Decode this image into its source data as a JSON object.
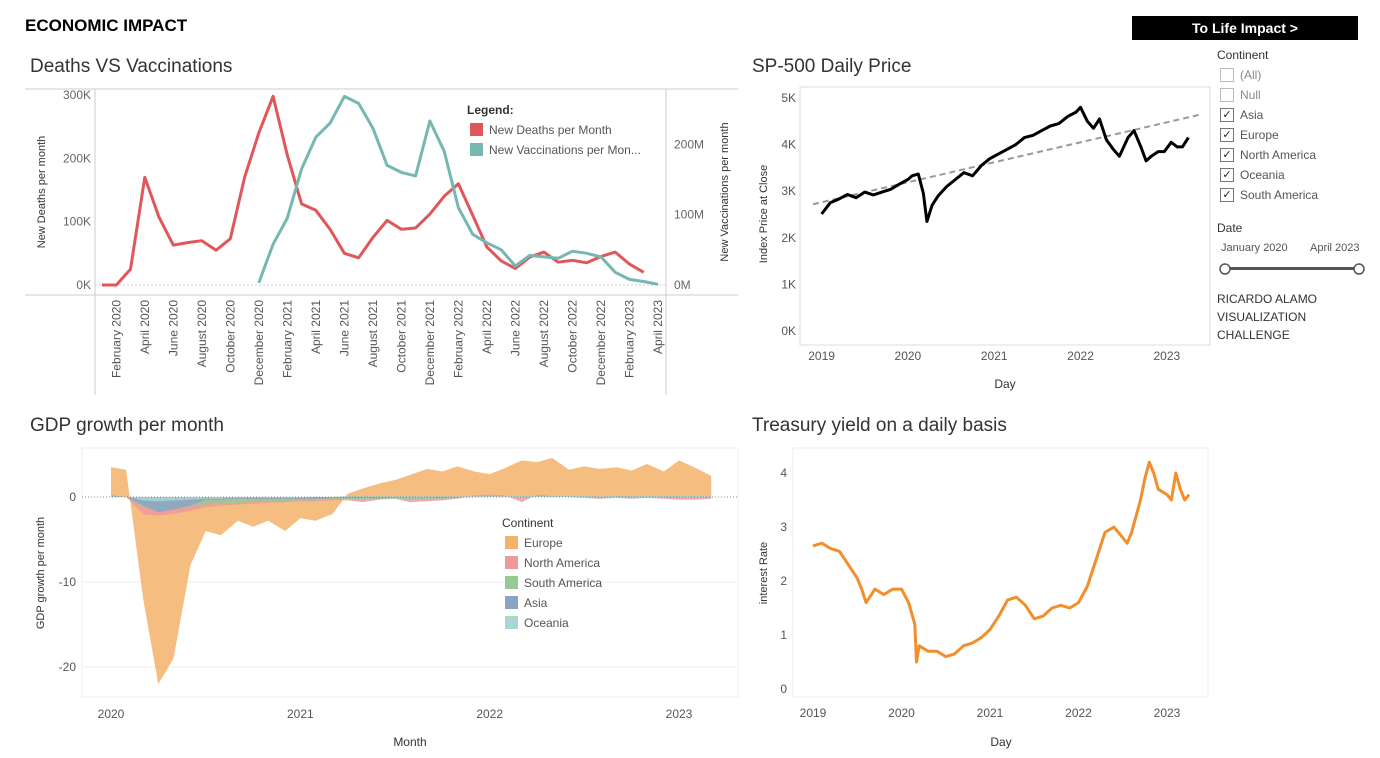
{
  "header": {
    "title": "ECONOMIC IMPACT",
    "nav_button": "To Life Impact >"
  },
  "filters": {
    "continent_title": "Continent",
    "continent_items": [
      {
        "label": "(All)",
        "checked": false
      },
      {
        "label": "Null",
        "checked": false
      },
      {
        "label": "Asia",
        "checked": true
      },
      {
        "label": "Europe",
        "checked": true
      },
      {
        "label": "North America",
        "checked": true
      },
      {
        "label": "Oceania",
        "checked": true
      },
      {
        "label": "South America",
        "checked": true
      }
    ],
    "date_title": "Date",
    "date_start": "January 2020",
    "date_end": "April 2023",
    "credit_line1": "RICARDO ALAMO",
    "credit_line2": "VISUALIZATION",
    "credit_line3": "CHALLENGE"
  },
  "chart_data": [
    {
      "type": "line",
      "title": "Deaths VS Vaccinations",
      "ylabel": "New Deaths per month",
      "y2label": "New Vaccinations per month",
      "legend_title": "Legend:",
      "legend_position": "top-right",
      "categories": [
        "January 2020",
        "February 2020",
        "March 2020",
        "April 2020",
        "May 2020",
        "June 2020",
        "July 2020",
        "August 2020",
        "September 2020",
        "October 2020",
        "November 2020",
        "December 2020",
        "January 2021",
        "February 2021",
        "March 2021",
        "April 2021",
        "May 2021",
        "June 2021",
        "July 2021",
        "August 2021",
        "September 2021",
        "October 2021",
        "November 2021",
        "December 2021",
        "January 2022",
        "February 2022",
        "March 2022",
        "April 2022",
        "May 2022",
        "June 2022",
        "July 2022",
        "August 2022",
        "September 2022",
        "October 2022",
        "November 2022",
        "December 2022",
        "January 2023",
        "February 2023",
        "March 2023",
        "April 2023"
      ],
      "tick_labels": [
        "February 2020",
        "April 2020",
        "June 2020",
        "August 2020",
        "October 2020",
        "December 2020",
        "February 2021",
        "April 2021",
        "June 2021",
        "August 2021",
        "October 2021",
        "December 2021",
        "February 2022",
        "April 2022",
        "June 2022",
        "August 2022",
        "October 2022",
        "December 2022",
        "February 2023",
        "April 2023"
      ],
      "y_ticks": [
        "0K",
        "100K",
        "200K",
        "300K"
      ],
      "y2_ticks": [
        "0M",
        "100M",
        "200M"
      ],
      "ylim": [
        0,
        300000
      ],
      "y2lim": [
        0,
        270000000
      ],
      "series": [
        {
          "name": "New Deaths per Month",
          "axis": "left",
          "color": "#e15759",
          "values": [
            0,
            0,
            25000,
            170000,
            107000,
            63000,
            67000,
            70000,
            55000,
            73000,
            170000,
            240000,
            298000,
            205000,
            128000,
            118000,
            88000,
            50000,
            43000,
            75000,
            102000,
            88000,
            90000,
            112000,
            140000,
            160000,
            110000,
            60000,
            38000,
            26000,
            44000,
            52000,
            36000,
            39000,
            35000,
            45000,
            52000,
            33000,
            20000,
            null
          ]
        },
        {
          "name": "New Vaccinations per Month",
          "axis": "right",
          "color": "#76b7b2",
          "values": [
            null,
            null,
            null,
            null,
            null,
            null,
            null,
            null,
            null,
            null,
            null,
            3000000,
            58000000,
            95000000,
            165000000,
            210000000,
            230000000,
            268000000,
            258000000,
            223000000,
            170000000,
            160000000,
            155000000,
            233000000,
            190000000,
            110000000,
            72000000,
            60000000,
            50000000,
            27000000,
            42000000,
            40000000,
            38000000,
            48000000,
            45000000,
            40000000,
            18000000,
            8000000,
            5000000,
            1000000
          ]
        }
      ]
    },
    {
      "type": "line",
      "title": "SP-500 Daily Price",
      "xlabel": "Day",
      "ylabel": "Index Price at Close",
      "x_ticks": [
        "2019",
        "2020",
        "2021",
        "2022",
        "2023"
      ],
      "y_ticks": [
        "0K",
        "1K",
        "2K",
        "3K",
        "4K",
        "5K"
      ],
      "ylim": [
        0,
        5000
      ],
      "trend_line": {
        "start": [
          2018.9,
          2720
        ],
        "end": [
          2023.4,
          4650
        ]
      },
      "series": [
        {
          "color": "#000000",
          "x": [
            2019.0,
            2019.1,
            2019.2,
            2019.3,
            2019.4,
            2019.5,
            2019.6,
            2019.7,
            2019.8,
            2019.9,
            2020.0,
            2020.05,
            2020.12,
            2020.18,
            2020.22,
            2020.28,
            2020.35,
            2020.45,
            2020.55,
            2020.65,
            2020.75,
            2020.85,
            2020.95,
            2021.05,
            2021.15,
            2021.25,
            2021.35,
            2021.45,
            2021.55,
            2021.65,
            2021.75,
            2021.85,
            2021.95,
            2022.0,
            2022.08,
            2022.15,
            2022.22,
            2022.3,
            2022.38,
            2022.45,
            2022.55,
            2022.62,
            2022.7,
            2022.76,
            2022.82,
            2022.9,
            2022.97,
            2023.05,
            2023.12,
            2023.18,
            2023.25
          ],
          "y": [
            2510,
            2750,
            2830,
            2930,
            2860,
            2980,
            2920,
            2980,
            3040,
            3150,
            3250,
            3330,
            3370,
            2950,
            2350,
            2700,
            2900,
            3100,
            3250,
            3400,
            3330,
            3550,
            3700,
            3800,
            3900,
            4000,
            4150,
            4200,
            4300,
            4400,
            4450,
            4600,
            4700,
            4800,
            4500,
            4350,
            4550,
            4100,
            3900,
            3750,
            4150,
            4300,
            3950,
            3650,
            3750,
            3850,
            3850,
            4050,
            3950,
            3950,
            4150
          ]
        }
      ]
    },
    {
      "type": "area",
      "title": "GDP growth per month",
      "xlabel": "Month",
      "ylabel": "GDP growth per month",
      "legend_title": "Continent",
      "legend_position": "center-right",
      "x_ticks": [
        "2020",
        "2021",
        "2022",
        "2023"
      ],
      "y_ticks": [
        "0",
        "-10",
        "-20"
      ],
      "ylim": [
        -23,
        6
      ],
      "x": [
        2020.0,
        2020.08,
        2020.17,
        2020.25,
        2020.33,
        2020.42,
        2020.5,
        2020.58,
        2020.67,
        2020.75,
        2020.83,
        2020.92,
        2021.0,
        2021.08,
        2021.17,
        2021.25,
        2021.33,
        2021.42,
        2021.5,
        2021.58,
        2021.67,
        2021.75,
        2021.83,
        2021.92,
        2022.0,
        2022.08,
        2022.17,
        2022.25,
        2022.33,
        2022.42,
        2022.5,
        2022.58,
        2022.67,
        2022.75,
        2022.83,
        2022.92,
        2023.0,
        2023.08,
        2023.17
      ],
      "series": [
        {
          "name": "Europe",
          "color": "#f5b26b",
          "values": [
            3.5,
            3.2,
            -12,
            -22,
            -19,
            -8,
            -4,
            -4.5,
            -2.8,
            -3.5,
            -2.8,
            -4,
            -2.5,
            -2.8,
            -2,
            0.4,
            1,
            1.6,
            2,
            2.6,
            3.3,
            3,
            3.6,
            3,
            2.7,
            3.4,
            4.3,
            4.1,
            4.6,
            3.2,
            3.6,
            3.3,
            3.5,
            3.1,
            3.9,
            3.0,
            4.3,
            3.5,
            2.5
          ]
        },
        {
          "name": "North America",
          "color": "#ee9a9c",
          "values": [
            0.1,
            0,
            -2,
            -2.2,
            -2,
            -1.6,
            -1.2,
            -1,
            -0.9,
            -0.8,
            -0.7,
            -0.6,
            -0.5,
            -0.5,
            -0.4,
            -0.4,
            -0.6,
            -0.3,
            -0.2,
            -0.6,
            -0.5,
            -0.4,
            -0.2,
            0.2,
            0.3,
            0.2,
            -0.6,
            0.3,
            0.1,
            0,
            -0.1,
            -0.2,
            -0.1,
            -0.2,
            -0.1,
            -0.2,
            -0.3,
            -0.3,
            -0.2
          ]
        },
        {
          "name": "South America",
          "color": "#98c995",
          "values": [
            0.1,
            0,
            -1.2,
            -1.5,
            -1.3,
            -1.1,
            -0.9,
            -0.8,
            -0.7,
            -0.6,
            -0.5,
            -0.5,
            -0.4,
            -0.4,
            -0.3,
            -0.2,
            -0.3,
            -0.2,
            -0.2,
            -0.3,
            -0.2,
            -0.2,
            -0.1,
            0,
            0.1,
            0,
            0.1,
            0.1,
            0,
            0,
            0,
            -0.1,
            0,
            0,
            0.1,
            0,
            0,
            0.1,
            0.1
          ]
        },
        {
          "name": "Asia",
          "color": "#8ba4c6",
          "values": [
            0.2,
            0,
            -1,
            -1.8,
            -1.5,
            -1,
            -0.3,
            -0.3,
            -0.2,
            -0.2,
            -0.2,
            -0.2,
            -0.2,
            -0.2,
            -0.1,
            -0.1,
            -0.1,
            -0.1,
            0,
            0,
            0,
            -0.1,
            0,
            0,
            0,
            0,
            0,
            0,
            0.1,
            0.1,
            0.1,
            0,
            0.1,
            0.1,
            0,
            0.1,
            0.1,
            0,
            0
          ]
        },
        {
          "name": "Oceania",
          "color": "#a9d6d3",
          "values": [
            0.1,
            0,
            -0.4,
            -0.5,
            -0.4,
            -0.3,
            -0.2,
            -0.2,
            -0.1,
            -0.1,
            -0.1,
            -0.1,
            -0.1,
            0,
            0,
            0.1,
            0.1,
            0.1,
            0.1,
            0.1,
            0.1,
            0.1,
            0.1,
            0.1,
            0.1,
            0.1,
            0.1,
            0.1,
            0.1,
            0.1,
            0.1,
            0.1,
            0.1,
            0.1,
            0.1,
            0.1,
            0.1,
            0.1,
            0.1
          ]
        }
      ]
    },
    {
      "type": "line",
      "title": "Treasury yield on a daily basis",
      "xlabel": "Day",
      "ylabel": "interest Rate",
      "x_ticks": [
        "2019",
        "2020",
        "2021",
        "2022",
        "2023"
      ],
      "y_ticks": [
        "0",
        "1",
        "2",
        "3",
        "4"
      ],
      "ylim": [
        0,
        4.4
      ],
      "series": [
        {
          "color": "#f28e2b",
          "x": [
            2019.0,
            2019.1,
            2019.2,
            2019.3,
            2019.4,
            2019.5,
            2019.55,
            2019.6,
            2019.7,
            2019.8,
            2019.9,
            2020.0,
            2020.08,
            2020.15,
            2020.17,
            2020.2,
            2020.3,
            2020.4,
            2020.5,
            2020.6,
            2020.7,
            2020.8,
            2020.9,
            2021.0,
            2021.1,
            2021.2,
            2021.3,
            2021.4,
            2021.5,
            2021.6,
            2021.7,
            2021.8,
            2021.9,
            2022.0,
            2022.1,
            2022.2,
            2022.3,
            2022.4,
            2022.5,
            2022.55,
            2022.6,
            2022.7,
            2022.75,
            2022.8,
            2022.85,
            2022.9,
            2023.0,
            2023.05,
            2023.1,
            2023.15,
            2023.2,
            2023.25
          ],
          "y": [
            2.65,
            2.7,
            2.6,
            2.55,
            2.3,
            2.05,
            1.85,
            1.6,
            1.85,
            1.75,
            1.85,
            1.85,
            1.6,
            1.2,
            0.5,
            0.8,
            0.7,
            0.7,
            0.6,
            0.65,
            0.8,
            0.85,
            0.95,
            1.1,
            1.35,
            1.65,
            1.7,
            1.55,
            1.3,
            1.35,
            1.5,
            1.55,
            1.5,
            1.6,
            1.9,
            2.4,
            2.9,
            3.0,
            2.8,
            2.7,
            2.9,
            3.5,
            3.9,
            4.2,
            4.0,
            3.7,
            3.6,
            3.5,
            4.0,
            3.7,
            3.5,
            3.6
          ]
        }
      ]
    }
  ]
}
